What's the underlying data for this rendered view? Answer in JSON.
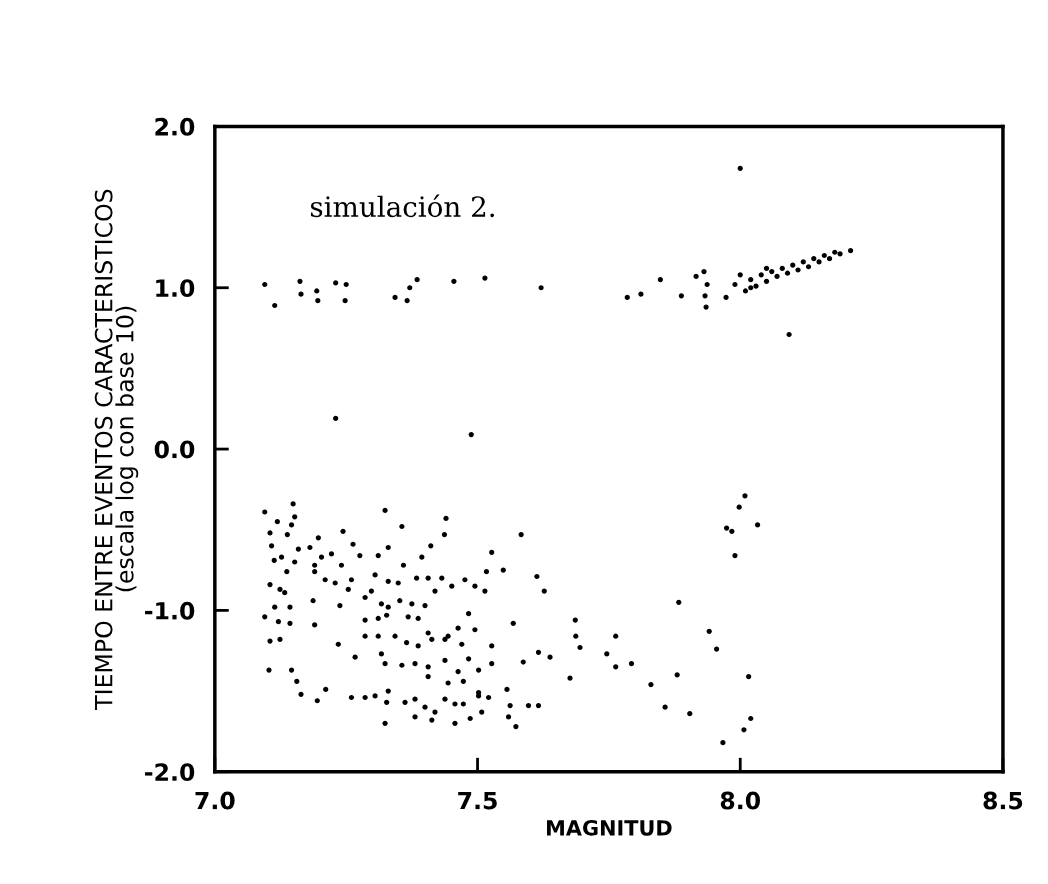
{
  "chart_data": {
    "type": "scatter",
    "xlabel": "MAGNITUD",
    "ylabel": "TIEMPO ENTRE EVENTOS CARACTERISTICOS\n(escala log con base 10)",
    "annotations": [
      "simulación 2."
    ],
    "xlim": [
      7.0,
      8.5
    ],
    "ylim": [
      -2.0,
      2.0
    ],
    "xticks": [
      {
        "value": 7.0,
        "label": "7.0"
      },
      {
        "value": 7.5,
        "label": "7.5"
      },
      {
        "value": 8.0,
        "label": "8.0"
      },
      {
        "value": 8.5,
        "label": "8.5"
      }
    ],
    "yticks": [
      {
        "value": -2.0,
        "label": "-2.0"
      },
      {
        "value": -1.0,
        "label": "-1.0"
      },
      {
        "value": 0.0,
        "label": "0.0"
      },
      {
        "value": 1.0,
        "label": "1.0"
      },
      {
        "value": 2.0,
        "label": "2.0"
      }
    ],
    "grid": false,
    "legend": false,
    "marker": "circle",
    "series": [
      {
        "color": "#000000",
        "x": [
          7.095,
          7.114,
          7.162,
          7.164,
          7.194,
          7.196,
          7.23,
          7.25,
          7.248,
          7.343,
          7.366,
          7.371,
          7.385,
          7.455,
          7.514,
          7.621,
          7.785,
          7.811,
          7.848,
          7.888,
          7.916,
          7.931,
          7.937,
          7.933,
          7.935,
          7.973,
          8.093,
          7.23,
          7.488,
          8.0,
          7.99,
          8.0,
          8.01,
          8.02,
          8.03,
          8.04,
          8.05,
          8.06,
          8.07,
          8.08,
          8.09,
          8.1,
          8.11,
          8.12,
          8.13,
          8.14,
          8.15,
          8.16,
          8.17,
          8.18,
          8.19,
          8.21,
          8.02,
          8.05,
          7.095,
          7.149,
          7.119,
          7.152,
          7.146,
          7.105,
          7.138,
          7.197,
          7.244,
          7.108,
          7.159,
          7.181,
          7.113,
          7.127,
          7.152,
          7.137,
          7.19,
          7.203,
          7.222,
          7.241,
          7.263,
          7.276,
          7.311,
          7.33,
          7.324,
          7.356,
          7.44,
          7.437,
          7.411,
          7.394,
          7.359,
          7.583,
          7.527,
          7.517,
          7.549,
          7.613,
          7.627,
          7.105,
          7.124,
          7.133,
          7.19,
          7.21,
          7.229,
          7.254,
          7.26,
          7.305,
          7.33,
          7.349,
          7.384,
          7.406,
          7.432,
          7.451,
          7.476,
          7.495,
          7.514,
          7.419,
          7.286,
          7.298,
          7.317,
          7.33,
          7.352,
          7.375,
          7.4,
          7.114,
          7.095,
          7.121,
          7.143,
          7.143,
          7.187,
          7.238,
          7.19,
          7.286,
          7.311,
          7.327,
          7.368,
          7.387,
          7.406,
          7.444,
          7.463,
          7.495,
          7.527,
          7.483,
          7.568,
          7.686,
          7.687,
          7.695,
          7.105,
          7.124,
          7.235,
          7.267,
          7.286,
          7.311,
          7.343,
          7.365,
          7.387,
          7.413,
          7.438,
          7.47,
          7.317,
          7.324,
          7.356,
          7.381,
          7.406,
          7.438,
          7.463,
          7.483,
          7.502,
          7.527,
          7.587,
          7.616,
          7.638,
          7.676,
          7.746,
          7.103,
          7.146,
          7.156,
          7.164,
          7.195,
          7.211,
          7.26,
          7.286,
          7.305,
          7.33,
          7.327,
          7.362,
          7.381,
          7.4,
          7.419,
          7.438,
          7.457,
          7.473,
          7.502,
          7.521,
          7.406,
          7.444,
          7.473,
          7.502,
          7.556,
          7.562,
          7.597,
          7.616,
          7.324,
          7.381,
          7.413,
          7.457,
          7.486,
          7.508,
          7.559,
          7.573,
          8.009,
          7.998,
          8.033,
          7.974,
          7.984,
          7.99,
          7.883,
          7.763,
          7.763,
          7.793,
          7.83,
          7.88,
          7.941,
          7.955,
          8.016,
          7.857,
          7.904,
          8.02,
          8.007,
          7.967
        ],
        "values": [
          1.02,
          0.89,
          1.04,
          0.96,
          0.98,
          0.92,
          1.03,
          1.02,
          0.92,
          0.94,
          0.92,
          1.0,
          1.05,
          1.04,
          1.06,
          1.0,
          0.94,
          0.96,
          1.05,
          0.95,
          1.07,
          1.1,
          1.02,
          0.95,
          0.88,
          0.94,
          0.71,
          0.19,
          0.09,
          1.74,
          1.02,
          1.08,
          0.98,
          1.05,
          1.01,
          1.08,
          1.04,
          1.1,
          1.07,
          1.12,
          1.09,
          1.14,
          1.11,
          1.16,
          1.13,
          1.18,
          1.16,
          1.2,
          1.18,
          1.22,
          1.21,
          1.23,
          1.0,
          1.12,
          -0.39,
          -0.34,
          -0.45,
          -0.42,
          -0.47,
          -0.52,
          -0.53,
          -0.55,
          -0.51,
          -0.6,
          -0.62,
          -0.61,
          -0.69,
          -0.67,
          -0.7,
          -0.76,
          -0.72,
          -0.67,
          -0.65,
          -0.72,
          -0.59,
          -0.66,
          -0.66,
          -0.61,
          -0.38,
          -0.48,
          -0.43,
          -0.53,
          -0.6,
          -0.67,
          -0.72,
          -0.53,
          -0.64,
          -0.76,
          -0.75,
          -0.79,
          -0.88,
          -0.84,
          -0.87,
          -0.89,
          -0.76,
          -0.81,
          -0.83,
          -0.87,
          -0.81,
          -0.78,
          -0.82,
          -0.83,
          -0.8,
          -0.8,
          -0.8,
          -0.85,
          -0.81,
          -0.85,
          -0.88,
          -0.88,
          -0.92,
          -0.88,
          -0.96,
          -0.98,
          -0.94,
          -0.96,
          -0.97,
          -0.98,
          -1.04,
          -1.07,
          -0.98,
          -1.08,
          -0.94,
          -0.97,
          -1.09,
          -1.06,
          -1.05,
          -1.03,
          -1.04,
          -1.05,
          -1.14,
          -1.16,
          -1.11,
          -1.12,
          -1.22,
          -1.02,
          -1.08,
          -1.06,
          -1.16,
          -1.23,
          -1.19,
          -1.18,
          -1.21,
          -1.29,
          -1.16,
          -1.16,
          -1.16,
          -1.2,
          -1.22,
          -1.18,
          -1.18,
          -1.21,
          -1.27,
          -1.33,
          -1.34,
          -1.33,
          -1.35,
          -1.31,
          -1.38,
          -1.3,
          -1.37,
          -1.33,
          -1.32,
          -1.26,
          -1.29,
          -1.42,
          -1.27,
          -1.37,
          -1.37,
          -1.44,
          -1.52,
          -1.56,
          -1.49,
          -1.54,
          -1.54,
          -1.53,
          -1.5,
          -1.57,
          -1.57,
          -1.55,
          -1.6,
          -1.63,
          -1.55,
          -1.58,
          -1.58,
          -1.53,
          -1.54,
          -1.41,
          -1.45,
          -1.44,
          -1.51,
          -1.49,
          -1.59,
          -1.59,
          -1.59,
          -1.7,
          -1.66,
          -1.68,
          -1.7,
          -1.67,
          -1.63,
          -1.66,
          -1.72,
          -0.29,
          -0.36,
          -0.47,
          -0.49,
          -0.51,
          -0.66,
          -0.95,
          -1.16,
          -1.35,
          -1.33,
          -1.46,
          -1.4,
          -1.13,
          -1.24,
          -1.41,
          -1.6,
          -1.64,
          -1.67,
          -1.74,
          -1.82
        ]
      }
    ]
  }
}
